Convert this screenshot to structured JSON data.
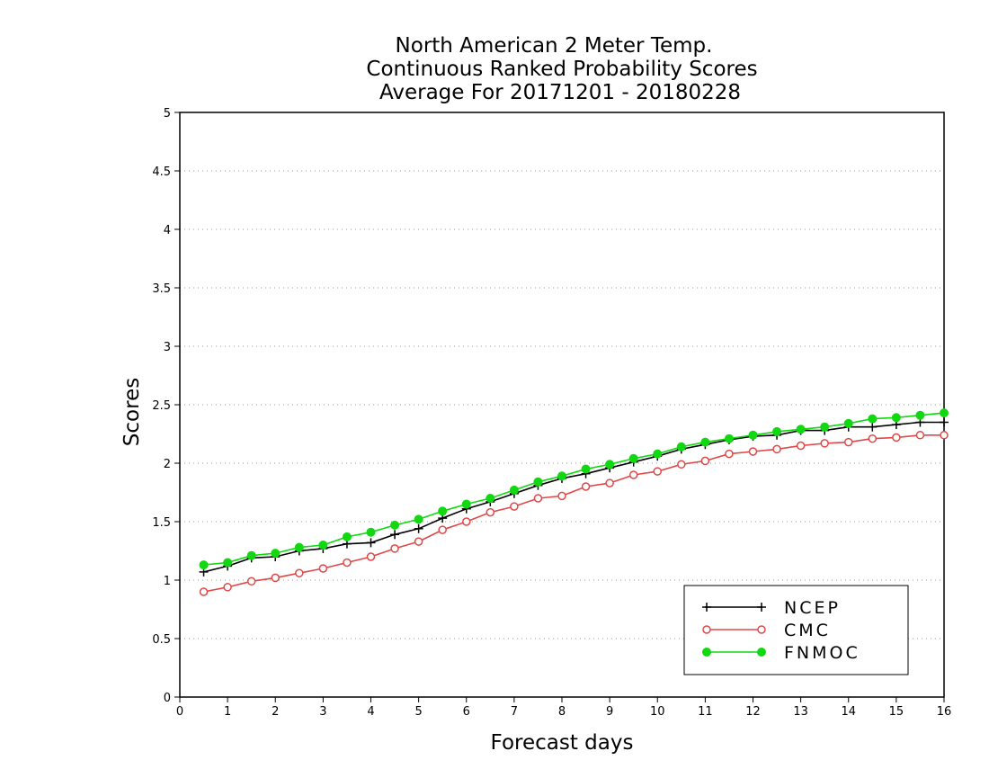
{
  "chart_data": {
    "type": "line",
    "title": [
      "North American 2 Meter Temp.",
      "Continuous Ranked Probability Scores",
      "Average For 20171201 - 20180228"
    ],
    "xlabel": "Forecast days",
    "ylabel": "Scores",
    "xlim": [
      0,
      16
    ],
    "ylim": [
      0,
      5
    ],
    "x_ticks": [
      "0",
      "1",
      "2",
      "3",
      "4",
      "5",
      "6",
      "7",
      "8",
      "9",
      "10",
      "11",
      "12",
      "13",
      "14",
      "15",
      "16"
    ],
    "y_ticks": [
      "0",
      "0.5",
      "1",
      "1.5",
      "2",
      "2.5",
      "3",
      "3.5",
      "4",
      "4.5",
      "5"
    ],
    "grid": "horizontal-dotted",
    "legend_position": "bottom-right",
    "x": [
      0.5,
      1,
      1.5,
      2,
      2.5,
      3,
      3.5,
      4,
      4.5,
      5,
      5.5,
      6,
      6.5,
      7,
      7.5,
      8,
      8.5,
      9,
      9.5,
      10,
      10.5,
      11,
      11.5,
      12,
      12.5,
      13,
      13.5,
      14,
      14.5,
      15,
      15.5,
      16
    ],
    "series": [
      {
        "name": "NCEP",
        "color": "#000000",
        "marker": "plus",
        "values": [
          1.07,
          1.12,
          1.19,
          1.2,
          1.25,
          1.27,
          1.31,
          1.32,
          1.39,
          1.44,
          1.53,
          1.61,
          1.67,
          1.74,
          1.81,
          1.87,
          1.91,
          1.96,
          2.01,
          2.06,
          2.12,
          2.16,
          2.2,
          2.23,
          2.24,
          2.28,
          2.28,
          2.31,
          2.31,
          2.33,
          2.35,
          2.35
        ]
      },
      {
        "name": "CMC",
        "color": "#e04848",
        "marker": "open-circle",
        "values": [
          0.9,
          0.94,
          0.99,
          1.02,
          1.06,
          1.1,
          1.15,
          1.2,
          1.27,
          1.33,
          1.43,
          1.5,
          1.58,
          1.63,
          1.7,
          1.72,
          1.8,
          1.83,
          1.9,
          1.93,
          1.99,
          2.02,
          2.08,
          2.1,
          2.12,
          2.15,
          2.17,
          2.18,
          2.21,
          2.22,
          2.24,
          2.24
        ]
      },
      {
        "name": "FNMOC",
        "color": "#11d811",
        "marker": "filled-circle",
        "values": [
          1.13,
          1.15,
          1.21,
          1.23,
          1.28,
          1.3,
          1.37,
          1.41,
          1.47,
          1.52,
          1.59,
          1.65,
          1.7,
          1.77,
          1.84,
          1.89,
          1.95,
          1.99,
          2.04,
          2.08,
          2.14,
          2.18,
          2.21,
          2.24,
          2.27,
          2.29,
          2.31,
          2.34,
          2.38,
          2.39,
          2.41,
          2.43
        ]
      }
    ]
  }
}
